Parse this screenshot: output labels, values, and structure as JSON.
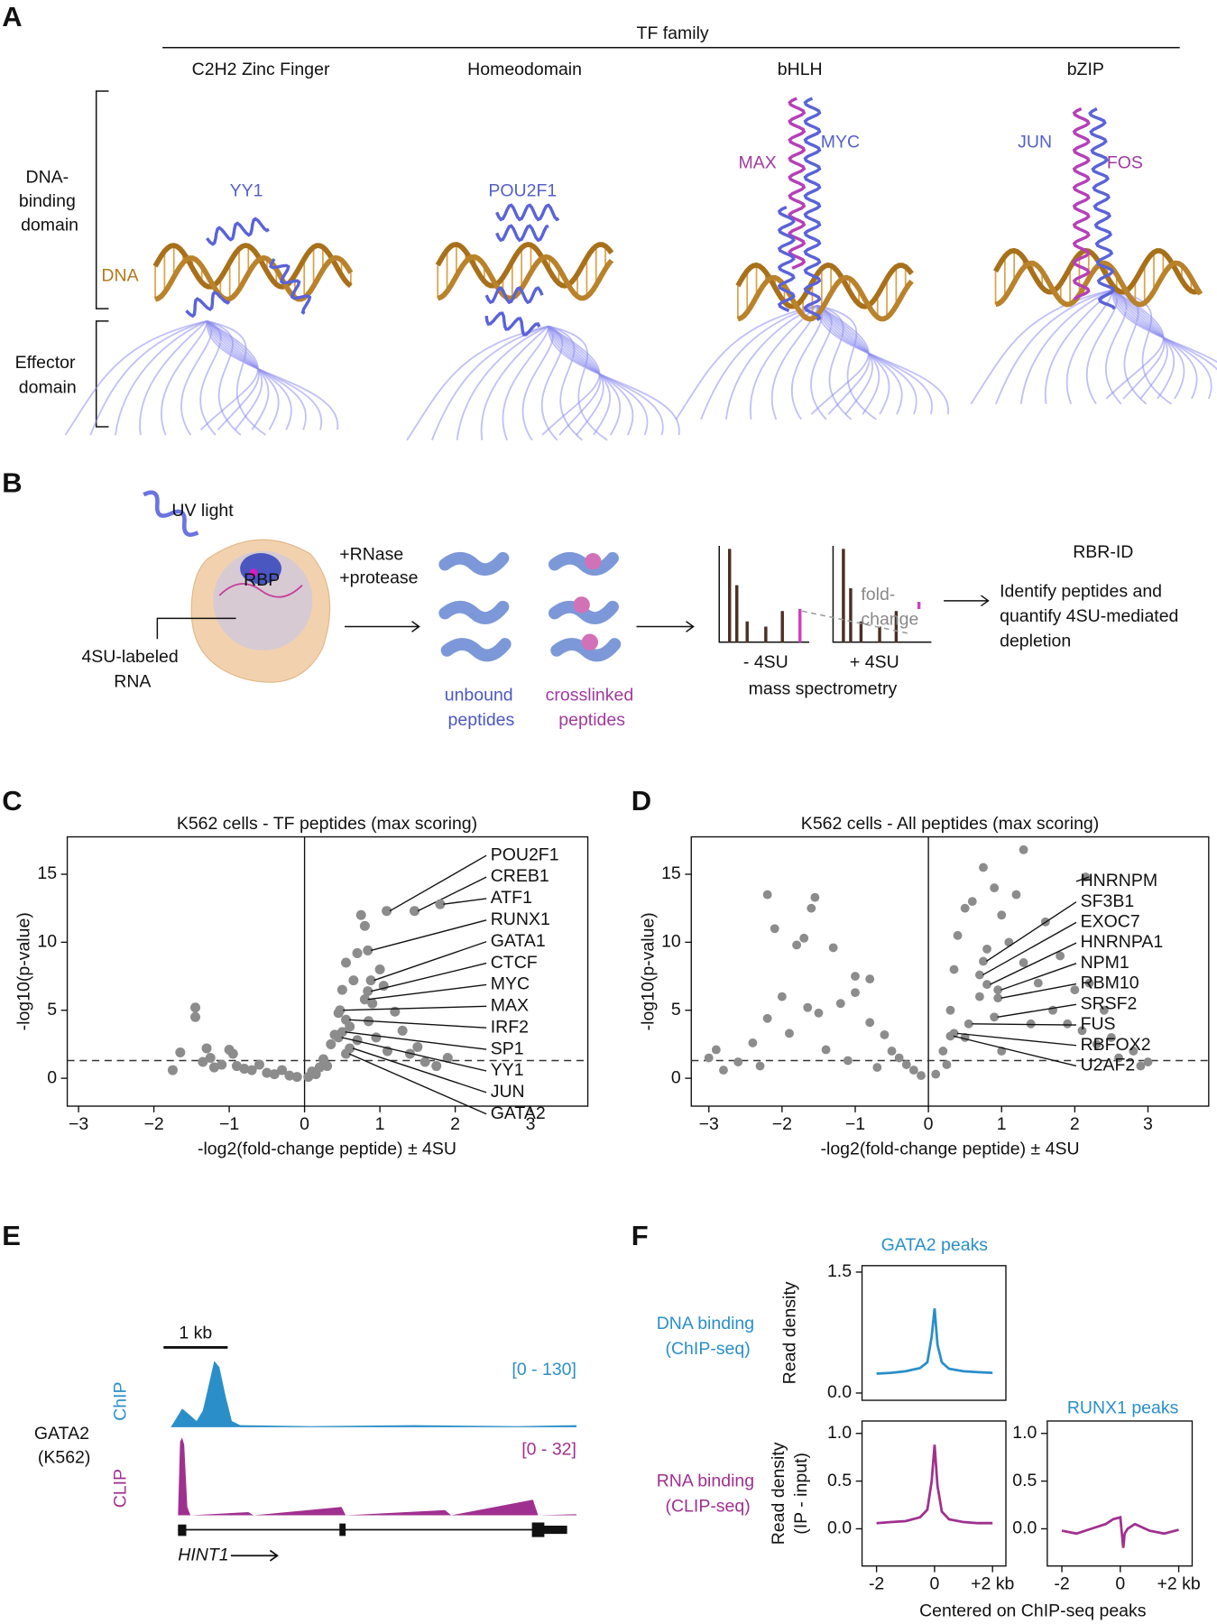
{
  "panel_labels": [
    "A",
    "B",
    "C",
    "D",
    "E",
    "F"
  ],
  "panel_a": {
    "header": "TF family",
    "families": [
      "C2H2 Zinc Finger",
      "Homeodomain",
      "bHLH",
      "bZIP"
    ],
    "dna_binding": [
      "DNA-",
      "binding",
      "domain"
    ],
    "effector": [
      "Effector",
      "domain"
    ],
    "dna": "DNA",
    "proteins": [
      "YY1",
      "POU2F1",
      "MAX",
      "MYC",
      "JUN",
      "FOS"
    ]
  },
  "panel_b": {
    "uv": "UV light",
    "rbp": "RBP",
    "rna": [
      "4SU-labeled",
      "RNA"
    ],
    "enzymes": [
      "+RNase",
      "+protease"
    ],
    "unbound": [
      "unbound",
      "peptides"
    ],
    "crosslinked": [
      "crosslinked",
      "peptides"
    ],
    "fold_change": [
      "fold-",
      "change"
    ],
    "conditions": [
      "- 4SU",
      "+ 4SU"
    ],
    "method": "mass spectrometry",
    "result_title": "RBR-ID",
    "result_text": [
      "Identify peptides and",
      "quantify 4SU-mediated",
      "depletion"
    ]
  },
  "panel_e": {
    "scale": "1 kb",
    "tracks": [
      "ChIP",
      "CLIP"
    ],
    "sample": [
      "GATA2",
      "(K562)"
    ],
    "ranges": [
      "[0 - 130]",
      "[0 - 32]"
    ],
    "gene": "HINT1"
  },
  "panel_f": {
    "row_labels": [
      [
        "DNA binding",
        "(ChIP-seq)"
      ],
      [
        "RNA binding",
        "(CLIP-seq)"
      ]
    ]
  },
  "chart_data": [
    {
      "type": "scatter",
      "title": "K562 cells - TF peptides (max scoring)",
      "xlabel": "-log2(fold-change peptide) ± 4SU",
      "ylabel": "-log10(p-value)",
      "xlim": [
        -3.15,
        3.76
      ],
      "ylim": [
        -2.05,
        17.75
      ],
      "xticks": [
        {
          "value": -3,
          "label": "−3"
        },
        {
          "value": -2,
          "label": "−2"
        },
        {
          "value": -1,
          "label": "−1"
        },
        0,
        1,
        2,
        3
      ],
      "yticks": [
        0,
        5,
        10,
        15
      ],
      "threshold": 1.3,
      "color": "#8c8c8c",
      "x": [
        -1.75,
        -1.65,
        -1.45,
        -1.45,
        -1.35,
        -1.3,
        -1.25,
        -1.2,
        -1.1,
        -1.0,
        -0.95,
        -0.9,
        -0.8,
        -0.7,
        -0.6,
        -0.5,
        -0.4,
        -0.3,
        -0.2,
        -0.1,
        0.05,
        0.1,
        0.2,
        0.25,
        0.35,
        0.4,
        0.45,
        0.5,
        0.55,
        0.6,
        0.65,
        0.7,
        0.7,
        0.75,
        0.8,
        0.85,
        0.9,
        0.95,
        1.0,
        1.05,
        1.1,
        1.2,
        1.3,
        1.4,
        1.5,
        1.6,
        1.75,
        1.9,
        0.3,
        0.15
      ],
      "values": [
        0.6,
        1.9,
        5.2,
        4.5,
        1.2,
        2.2,
        1.5,
        0.8,
        1.0,
        2.1,
        1.8,
        0.9,
        0.7,
        0.6,
        1.0,
        0.4,
        0.3,
        0.6,
        0.2,
        0.1,
        0.1,
        0.5,
        0.8,
        1.4,
        2.5,
        3.2,
        4.8,
        6.5,
        8.5,
        3.8,
        7.2,
        9.2,
        2.8,
        12.0,
        11.2,
        4.2,
        5.5,
        3.0,
        8.0,
        6.8,
        2.0,
        4.9,
        3.5,
        1.8,
        2.3,
        1.2,
        0.9,
        1.5,
        0.9,
        0.3
      ],
      "annotations": [
        {
          "text": "POU2F1",
          "x": 1.09,
          "y": 12.3
        },
        {
          "text": "CREB1",
          "x": 1.46,
          "y": 12.3
        },
        {
          "text": "ATF1",
          "x": 1.8,
          "y": 12.8
        },
        {
          "text": "RUNX1",
          "x": 0.84,
          "y": 9.4
        },
        {
          "text": "GATA1",
          "x": 0.88,
          "y": 7.2
        },
        {
          "text": "CTCF",
          "x": 0.84,
          "y": 6.4
        },
        {
          "text": "MYC",
          "x": 0.8,
          "y": 5.8
        },
        {
          "text": "MAX",
          "x": 0.47,
          "y": 5.0
        },
        {
          "text": "IRF2",
          "x": 0.55,
          "y": 4.3
        },
        {
          "text": "SP1",
          "x": 0.5,
          "y": 3.4
        },
        {
          "text": "YY1",
          "x": 0.45,
          "y": 3.0
        },
        {
          "text": "JUN",
          "x": 0.6,
          "y": 2.2
        },
        {
          "text": "GATA2",
          "x": 0.55,
          "y": 1.8
        }
      ]
    },
    {
      "type": "scatter",
      "title": "K562 cells - All peptides (max scoring)",
      "xlabel": "-log2(fold-change peptide) ± 4SU",
      "ylabel": "-log10(p-value)",
      "xlim": [
        -3.24,
        3.83
      ],
      "ylim": [
        -2.05,
        17.75
      ],
      "xticks": [
        {
          "value": -3,
          "label": "−3"
        },
        {
          "value": -2,
          "label": "−2"
        },
        {
          "value": -1,
          "label": "−1"
        },
        0,
        1,
        2,
        3
      ],
      "yticks": [
        0,
        5,
        10,
        15
      ],
      "threshold": 1.3,
      "color": "#8c8c8c",
      "x": [
        -2.2,
        -1.55,
        -1.6,
        -2.1,
        -1.7,
        -1.3,
        -1.0,
        -0.8,
        -1.8,
        -1.65,
        -2.9,
        -2.6,
        -2.4,
        -2.2,
        -2.0,
        -1.9,
        -1.5,
        -1.2,
        -1.0,
        -0.8,
        -0.6,
        -0.5,
        -0.4,
        -0.3,
        -0.2,
        -0.1,
        -2.8,
        -2.3,
        -1.4,
        -1.1,
        -0.7,
        -3.0,
        0.1,
        0.2,
        0.3,
        0.35,
        0.4,
        0.5,
        0.6,
        0.75,
        0.9,
        1.0,
        1.1,
        1.3,
        1.3,
        1.5,
        1.6,
        1.7,
        1.8,
        1.9,
        2.0,
        2.1,
        2.2,
        2.3,
        2.4,
        2.6,
        2.8,
        2.9,
        3.0,
        0.5,
        0.7,
        0.8,
        1.2,
        1.4,
        0.25,
        1.0,
        2.5
      ],
      "values": [
        13.5,
        13.3,
        12.5,
        11.0,
        10.3,
        9.6,
        7.5,
        7.3,
        9.8,
        5.2,
        2.1,
        1.2,
        2.6,
        4.4,
        6.0,
        3.3,
        4.8,
        5.5,
        6.3,
        4.1,
        3.2,
        2.0,
        1.5,
        1.0,
        0.6,
        0.2,
        0.6,
        0.9,
        2.1,
        1.3,
        0.8,
        1.5,
        0.3,
        2.0,
        5.0,
        8.0,
        10.5,
        12.5,
        13.0,
        15.5,
        14.0,
        12.0,
        10.0,
        16.8,
        8.5,
        7.0,
        11.5,
        5.0,
        9.0,
        4.0,
        6.5,
        3.5,
        7.0,
        2.5,
        5.0,
        1.5,
        2.0,
        0.9,
        1.2,
        3.0,
        6.0,
        9.5,
        13.5,
        4.0,
        1.0,
        2.0,
        3.0
      ],
      "annotations": [
        {
          "text": "HNRNPM",
          "x": 2.15,
          "y": 14.8
        },
        {
          "text": "SF3B1",
          "x": 0.75,
          "y": 8.6
        },
        {
          "text": "EXOC7",
          "x": 0.7,
          "y": 7.6
        },
        {
          "text": "HNRNPA1",
          "x": 0.8,
          "y": 6.9
        },
        {
          "text": "NPM1",
          "x": 0.95,
          "y": 6.5
        },
        {
          "text": "RBM10",
          "x": 0.95,
          "y": 5.9
        },
        {
          "text": "SRSF2",
          "x": 0.9,
          "y": 4.5
        },
        {
          "text": "FUS",
          "x": 0.55,
          "y": 4.0
        },
        {
          "text": "RBFOX2",
          "x": 0.35,
          "y": 3.3
        },
        {
          "text": "U2AF2",
          "x": 0.3,
          "y": 3.1
        }
      ]
    },
    {
      "type": "line",
      "title": "GATA2 peaks",
      "ylabel": "Read density",
      "color": "#2a8fc9",
      "xlim": [
        -2.5,
        2.46
      ],
      "ylim": [
        -0.09,
        1.58
      ],
      "yticks": [
        {
          "value": 0,
          "label": "0.0"
        },
        {
          "value": 1.5,
          "label": "1.5"
        }
      ],
      "x": [
        -2,
        -1.5,
        -1,
        -0.5,
        -0.25,
        -0.1,
        0,
        0.1,
        0.25,
        0.5,
        1,
        1.5,
        2
      ],
      "values": [
        0.24,
        0.25,
        0.27,
        0.31,
        0.38,
        0.7,
        1.05,
        0.6,
        0.38,
        0.3,
        0.27,
        0.26,
        0.25
      ]
    },
    {
      "type": "line",
      "ylabel": [
        "Read density",
        "(IP - input)"
      ],
      "xlabel": "Centered on ChIP-seq peaks",
      "color": "#a0308f",
      "xlim": [
        -2.5,
        2.46
      ],
      "ylim": [
        -0.39,
        1.13
      ],
      "xticks": [
        -2,
        0,
        {
          "value": 2,
          "label": "+2 kb"
        }
      ],
      "yticks": [
        {
          "value": 0,
          "label": "0.0"
        },
        {
          "value": 0.5,
          "label": "0.5"
        },
        {
          "value": 1,
          "label": "1.0"
        }
      ],
      "x": [
        -2,
        -1.5,
        -1,
        -0.5,
        -0.25,
        -0.1,
        0,
        0.1,
        0.25,
        0.5,
        1,
        1.5,
        2
      ],
      "values": [
        0.06,
        0.07,
        0.08,
        0.12,
        0.2,
        0.5,
        0.88,
        0.45,
        0.18,
        0.1,
        0.07,
        0.06,
        0.06
      ]
    },
    {
      "type": "line",
      "title": "RUNX1 peaks",
      "color": "#a0308f",
      "xlim": [
        -2.5,
        2.46
      ],
      "ylim": [
        -0.39,
        1.13
      ],
      "xticks": [
        -2,
        0,
        {
          "value": 2,
          "label": "+2 kb"
        }
      ],
      "yticks": [
        {
          "value": 0,
          "label": "0.0"
        },
        {
          "value": 0.5,
          "label": "0.5"
        },
        {
          "value": 1,
          "label": "1.0"
        }
      ],
      "x": [
        -2,
        -1.5,
        -1,
        -0.5,
        -0.25,
        0,
        0.1,
        0.15,
        0.25,
        0.5,
        1,
        1.5,
        2
      ],
      "values": [
        -0.02,
        -0.05,
        0.0,
        0.05,
        0.1,
        0.12,
        -0.2,
        -0.05,
        0.0,
        0.05,
        -0.02,
        -0.05,
        -0.01
      ]
    }
  ]
}
